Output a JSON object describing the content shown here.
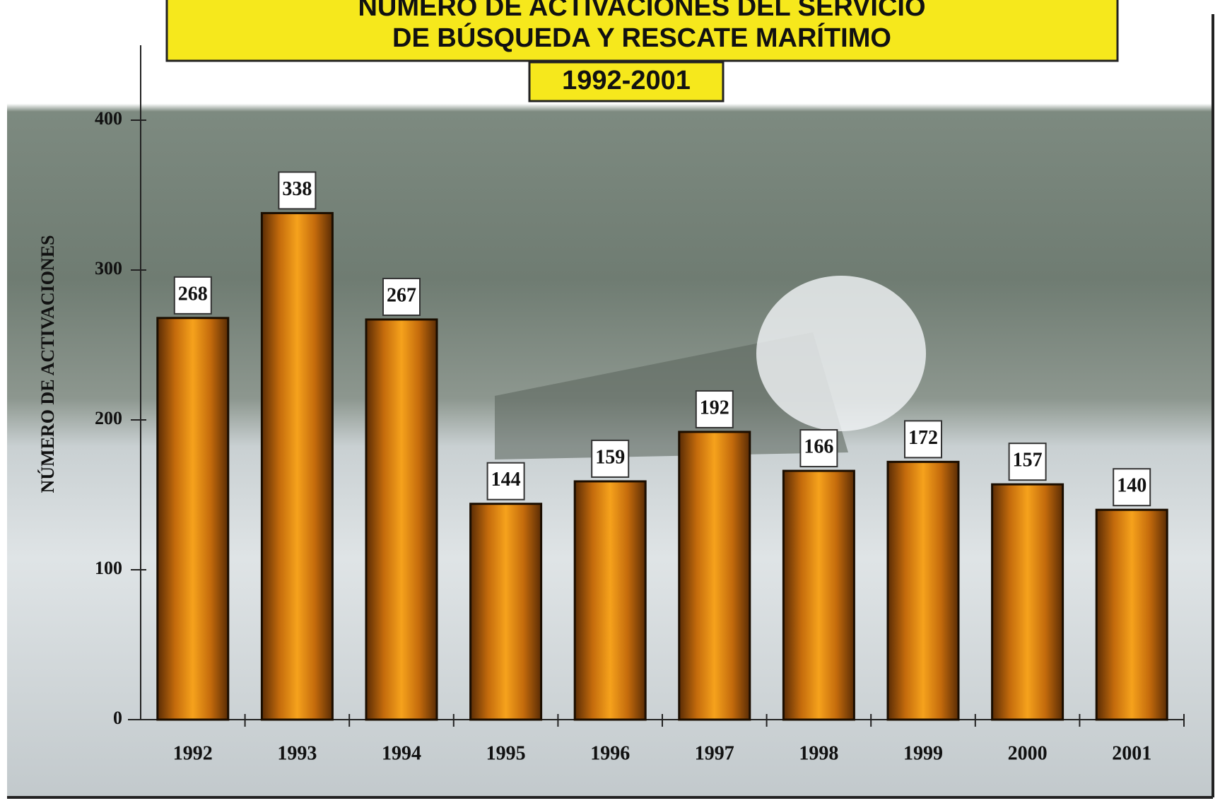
{
  "chart_data": {
    "type": "bar",
    "title": [
      "NÚMERO DE ACTIVACIONES DEL SERVICIO",
      "DE BÚSQUEDA Y RESCATE MARÍTIMO"
    ],
    "subtitle": "1992-2001",
    "y_label": "NÚMERO DE ACTIVACIONES",
    "categories": [
      "1992",
      "1993",
      "1994",
      "1995",
      "1996",
      "1997",
      "1998",
      "1999",
      "2000",
      "2001"
    ],
    "values": [
      268,
      338,
      267,
      144,
      159,
      192,
      166,
      172,
      157,
      140
    ],
    "color": "#e08a10",
    "ylim": [
      0,
      450
    ],
    "yticks": [
      0,
      100,
      200,
      300,
      400
    ]
  }
}
